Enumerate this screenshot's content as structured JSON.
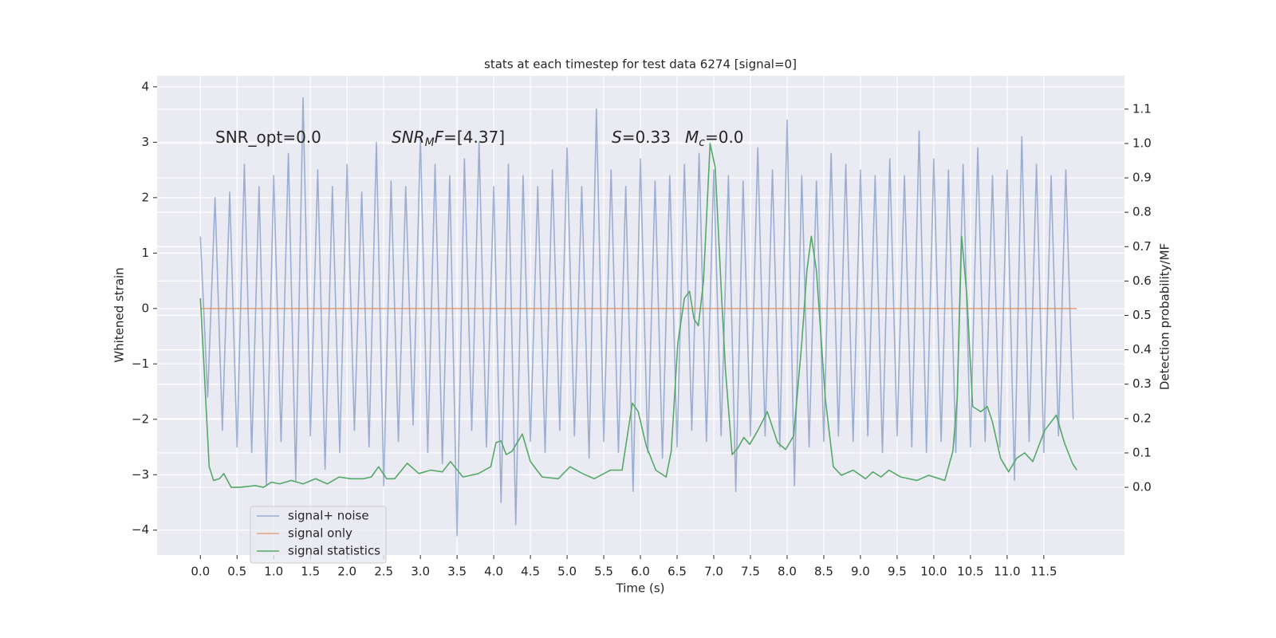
{
  "chart_data": {
    "type": "line",
    "title": "stats at each timestep for test data 6274 [signal=0]",
    "xlabel": "Time (s)",
    "ylabel": "Whitened strain",
    "y2label": "Detection probability/MF",
    "xlim": [
      -0.59,
      12.6
    ],
    "ylim": [
      -4.45,
      4.2
    ],
    "y2lim": [
      -0.197,
      1.197
    ],
    "xticks": [
      {
        "value": 0,
        "label": "0.0"
      },
      0.5,
      {
        "value": 1,
        "label": "1.0"
      },
      1.5,
      {
        "value": 2,
        "label": "2.0"
      },
      2.5,
      {
        "value": 3,
        "label": "3.0"
      },
      3.5,
      {
        "value": 4,
        "label": "4.0"
      },
      4.5,
      {
        "value": 5,
        "label": "5.0"
      },
      5.5,
      {
        "value": 6,
        "label": "6.0"
      },
      6.5,
      {
        "value": 7,
        "label": "7.0"
      },
      7.5,
      {
        "value": 8,
        "label": "8.0"
      },
      8.5,
      {
        "value": 9,
        "label": "9.0"
      },
      9.5,
      {
        "value": 10,
        "label": "10.0"
      },
      10.5,
      {
        "value": 11,
        "label": "11.0"
      },
      11.5
    ],
    "yticks": [
      {
        "value": -4,
        "label": "−4"
      },
      {
        "value": -3,
        "label": "−3"
      },
      {
        "value": -2,
        "label": "−2"
      },
      {
        "value": -1,
        "label": "−1"
      },
      0,
      1,
      2,
      3,
      4
    ],
    "y2ticks": [
      {
        "value": 0,
        "label": "0.0"
      },
      0.1,
      0.2,
      0.3,
      0.4,
      0.5,
      0.6,
      0.7,
      0.8,
      0.9,
      {
        "value": 1,
        "label": "1.0"
      },
      1.1
    ],
    "grid": true,
    "legend": "lower left",
    "annotations": [
      [
        {
          "text": "SNR_opt=0.0"
        }
      ],
      [
        {
          "text": "SNR",
          "italic": true
        },
        {
          "text": "M",
          "italic": true,
          "sub": true
        },
        {
          "text": "F",
          "italic": true
        },
        {
          "text": "=[4.37]"
        }
      ],
      [
        {
          "text": "S",
          "italic": true
        },
        {
          "text": "=0.33"
        }
      ],
      [
        {
          "text": "M",
          "italic": true
        },
        {
          "text": "c",
          "italic": true,
          "sub": true
        },
        {
          "text": "=0.0"
        }
      ]
    ],
    "series": [
      {
        "name": "signal+ noise",
        "color": "#4c72b0",
        "opacity": 0.5,
        "x": [
          0,
          0.1,
          0.2,
          0.3,
          0.4,
          0.5,
          0.6,
          0.7,
          0.8,
          0.9,
          1,
          1.1,
          1.2,
          1.3,
          1.4,
          1.5,
          1.6,
          1.7,
          1.8,
          1.9,
          2,
          2.1,
          2.2,
          2.3,
          2.4,
          2.5,
          2.6,
          2.7,
          2.8,
          2.9,
          3,
          3.1,
          3.2,
          3.3,
          3.4,
          3.5,
          3.6,
          3.7,
          3.8,
          3.9,
          4,
          4.1,
          4.2,
          4.3,
          4.4,
          4.5,
          4.6,
          4.7,
          4.8,
          4.9,
          5,
          5.1,
          5.2,
          5.3,
          5.4,
          5.5,
          5.6,
          5.7,
          5.8,
          5.9,
          6,
          6.1,
          6.2,
          6.3,
          6.4,
          6.5,
          6.6,
          6.7,
          6.8,
          6.9,
          7,
          7.1,
          7.2,
          7.3,
          7.4,
          7.5,
          7.6,
          7.7,
          7.8,
          7.9,
          8,
          8.1,
          8.2,
          8.3,
          8.4,
          8.5,
          8.6,
          8.7,
          8.8,
          8.9,
          9,
          9.1,
          9.2,
          9.3,
          9.4,
          9.5,
          9.6,
          9.7,
          9.8,
          9.9,
          10,
          10.1,
          10.2,
          10.3,
          10.4,
          10.5,
          10.6,
          10.7,
          10.8,
          10.9,
          11,
          11.1,
          11.2,
          11.3,
          11.4,
          11.5,
          11.6,
          11.7,
          11.8,
          11.9
        ],
        "values": [
          1.3,
          -1.6,
          2.0,
          -2.2,
          2.1,
          -2.5,
          2.6,
          -2.6,
          2.2,
          -3.2,
          2.4,
          -2.4,
          2.8,
          -3.1,
          3.8,
          -2.3,
          2.5,
          -2.9,
          2.2,
          -2.6,
          2.6,
          -2.2,
          2.1,
          -2.5,
          3.0,
          -3.2,
          2.3,
          -2.4,
          2.2,
          -2.1,
          3.1,
          -2.6,
          2.6,
          -2.8,
          2.4,
          -4.1,
          2.7,
          -2.2,
          3.0,
          -2.5,
          2.2,
          -3.5,
          2.6,
          -3.9,
          2.4,
          -2.4,
          2.2,
          -2.6,
          2.5,
          -2.2,
          2.9,
          -2.3,
          2.2,
          -2.7,
          3.6,
          -2.4,
          2.5,
          -2.6,
          2.2,
          -3.3,
          2.7,
          -2.6,
          2.3,
          -2.7,
          2.4,
          -2.5,
          2.6,
          -2.2,
          2.8,
          -2.4,
          2.5,
          -2.3,
          2.4,
          -3.3,
          2.3,
          -2.3,
          2.9,
          -2.3,
          2.5,
          -2.5,
          3.4,
          -3.2,
          2.4,
          -2.5,
          2.3,
          -2.4,
          2.8,
          -2.3,
          2.6,
          -2.4,
          2.5,
          -2.3,
          2.4,
          -2.6,
          2.7,
          -2.3,
          2.4,
          -2.5,
          3.2,
          -2.6,
          2.7,
          -2.4,
          2.5,
          -2.6,
          2.6,
          -2.5,
          2.9,
          -2.4,
          2.4,
          -2.5,
          2.5,
          -3.1,
          3.1,
          -2.4,
          2.6,
          -2.6,
          2.4,
          -2.3,
          2.5,
          -2.0
        ]
      },
      {
        "name": "signal only",
        "color": "#dd8452",
        "opacity": 0.7,
        "x": [
          0,
          11.95
        ],
        "values": [
          0,
          0
        ]
      },
      {
        "name": "signal statistics",
        "color": "#55a868",
        "axis": "y2",
        "x": [
          0,
          0.05,
          0.12,
          0.18,
          0.26,
          0.32,
          0.42,
          0.53,
          0.75,
          0.86,
          0.97,
          1.08,
          1.24,
          1.4,
          1.57,
          1.73,
          1.89,
          2.05,
          2.22,
          2.33,
          2.43,
          2.54,
          2.65,
          2.82,
          2.98,
          3.14,
          3.3,
          3.41,
          3.58,
          3.79,
          3.96,
          4.03,
          4.1,
          4.17,
          4.25,
          4.39,
          4.5,
          4.66,
          4.88,
          5.04,
          5.21,
          5.37,
          5.59,
          5.75,
          5.89,
          5.97,
          6.08,
          6.21,
          6.35,
          6.42,
          6.51,
          6.6,
          6.67,
          6.73,
          6.79,
          6.86,
          6.95,
          7.02,
          7.11,
          7.16,
          7.25,
          7.33,
          7.41,
          7.49,
          7.6,
          7.73,
          7.87,
          7.98,
          8.09,
          8.2,
          8.27,
          8.33,
          8.4,
          8.52,
          8.63,
          8.74,
          8.9,
          9.07,
          9.17,
          9.28,
          9.39,
          9.55,
          9.77,
          9.93,
          10.15,
          10.26,
          10.32,
          10.38,
          10.45,
          10.53,
          10.64,
          10.73,
          10.8,
          10.91,
          11.02,
          11.13,
          11.24,
          11.35,
          11.51,
          11.67,
          11.78,
          11.89,
          11.95
        ],
        "values": [
          0.55,
          0.35,
          0.06,
          0.02,
          0.025,
          0.04,
          0.0,
          0.0,
          0.005,
          0.0,
          0.015,
          0.01,
          0.02,
          0.01,
          0.025,
          0.01,
          0.03,
          0.025,
          0.025,
          0.03,
          0.06,
          0.025,
          0.025,
          0.07,
          0.04,
          0.05,
          0.045,
          0.075,
          0.03,
          0.04,
          0.06,
          0.13,
          0.135,
          0.095,
          0.105,
          0.155,
          0.075,
          0.03,
          0.025,
          0.06,
          0.04,
          0.025,
          0.05,
          0.05,
          0.245,
          0.22,
          0.12,
          0.05,
          0.03,
          0.105,
          0.42,
          0.55,
          0.57,
          0.49,
          0.47,
          0.6,
          1.0,
          0.93,
          0.54,
          0.34,
          0.095,
          0.115,
          0.145,
          0.125,
          0.165,
          0.22,
          0.13,
          0.11,
          0.15,
          0.42,
          0.63,
          0.73,
          0.63,
          0.26,
          0.06,
          0.035,
          0.05,
          0.025,
          0.045,
          0.03,
          0.05,
          0.03,
          0.02,
          0.035,
          0.02,
          0.105,
          0.26,
          0.73,
          0.56,
          0.235,
          0.22,
          0.235,
          0.19,
          0.085,
          0.045,
          0.085,
          0.1,
          0.075,
          0.165,
          0.21,
          0.13,
          0.07,
          0.05
        ]
      }
    ]
  }
}
